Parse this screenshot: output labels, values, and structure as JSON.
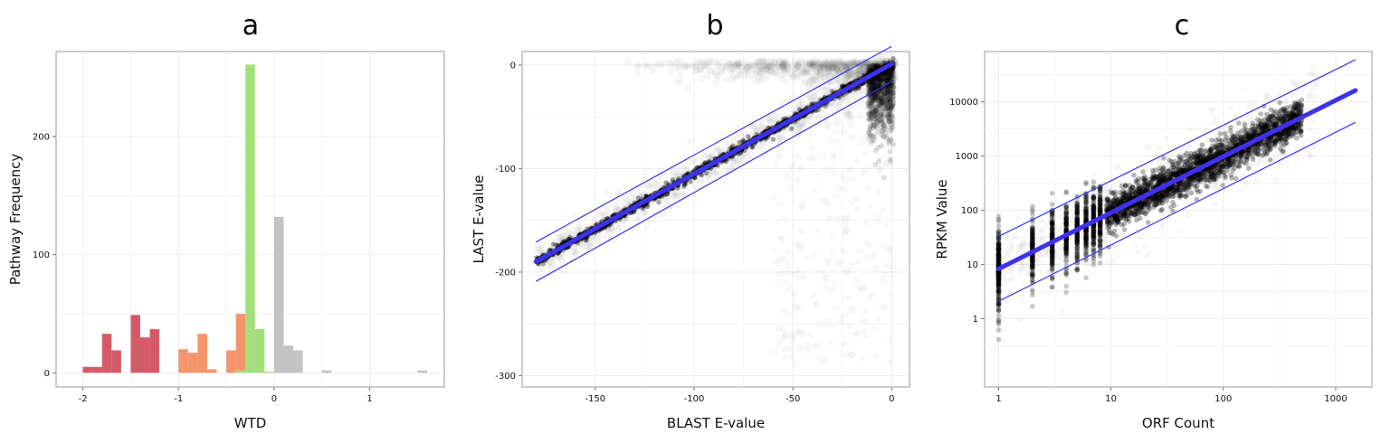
{
  "chart_data": [
    {
      "panel": "a",
      "type": "bar",
      "title": "a",
      "xlabel": "WTD",
      "ylabel": "Pathway Frequency",
      "xlim": [
        -2.28,
        1.78
      ],
      "ylim": [
        -12,
        272
      ],
      "xticks": [
        "-2",
        "-1",
        "0",
        "1"
      ],
      "xtick_values": [
        -2,
        -1,
        0,
        1
      ],
      "yticks": [
        "0",
        "100",
        "200"
      ],
      "ytick_values": [
        0,
        100,
        200
      ],
      "grid": true,
      "bin_width": 0.1,
      "series": [
        {
          "color": "#d45a6a",
          "values": [
            [
              -1.95,
              5
            ],
            [
              -1.85,
              5
            ],
            [
              -1.75,
              33
            ],
            [
              -1.65,
              19
            ],
            [
              -1.45,
              49
            ],
            [
              -1.35,
              30
            ],
            [
              -1.25,
              37
            ]
          ]
        },
        {
          "color": "#f5956e",
          "values": [
            [
              -0.95,
              20
            ],
            [
              -0.85,
              17
            ],
            [
              -0.75,
              33
            ],
            [
              -0.65,
              3
            ],
            [
              -0.45,
              19
            ],
            [
              -0.35,
              50
            ]
          ]
        },
        {
          "color": "#a3e07c",
          "values": [
            [
              -0.35,
              2
            ],
            [
              -0.25,
              261
            ],
            [
              -0.15,
              37
            ],
            [
              -0.05,
              1
            ]
          ]
        },
        {
          "color": "#c3c3c3",
          "values": [
            [
              0.05,
              132
            ],
            [
              0.15,
              23
            ],
            [
              0.25,
              19
            ],
            [
              0.55,
              2
            ],
            [
              1.55,
              2
            ]
          ]
        }
      ]
    },
    {
      "panel": "b",
      "type": "scatter",
      "title": "b",
      "xlabel": "BLAST E-value",
      "ylabel": "LAST E-value",
      "xlim": [
        -187,
        9
      ],
      "ylim": [
        -311,
        13
      ],
      "xticks": [
        "-150",
        "-100",
        "-50",
        "0"
      ],
      "xtick_values": [
        -150,
        -100,
        -50,
        0
      ],
      "yticks": [
        "0",
        "-100",
        "-200",
        "-300"
      ],
      "ytick_values": [
        0,
        -100,
        -200,
        -300
      ],
      "grid": true,
      "fit_line": {
        "color": "#3c32f2",
        "x": [
          -180,
          0
        ],
        "y": [
          -190,
          1
        ]
      },
      "band_upper": {
        "color": "#3c32f2",
        "x": [
          -180,
          0
        ],
        "y": [
          -171,
          18
        ]
      },
      "band_lower": {
        "color": "#3c32f2",
        "x": [
          -180,
          0
        ],
        "y": [
          -209,
          -16
        ]
      }
    },
    {
      "panel": "c",
      "type": "scatter",
      "title": "c",
      "xlabel": "ORF Count",
      "ylabel": "RPKM Value",
      "x_scale": "log10",
      "y_scale": "log10",
      "xlim": [
        0.75,
        2100
      ],
      "ylim": [
        0.055,
        85000
      ],
      "xticks": [
        "1",
        "10",
        "100",
        "1000"
      ],
      "xtick_values": [
        1,
        10,
        100,
        1000
      ],
      "yticks": [
        "1",
        "10",
        "100",
        "1000",
        "10000"
      ],
      "ytick_values": [
        1,
        10,
        100,
        1000,
        10000
      ],
      "grid": true,
      "fit_line": {
        "color": "#3c32f2",
        "x": [
          1,
          1500
        ],
        "y": [
          8.3,
          16300
        ]
      },
      "band_upper": {
        "color": "#3c32f2",
        "x": [
          1,
          1500
        ],
        "y": [
          33,
          60000
        ]
      },
      "band_lower": {
        "color": "#3c32f2",
        "x": [
          1,
          1500
        ],
        "y": [
          2.1,
          4200
        ]
      }
    }
  ]
}
